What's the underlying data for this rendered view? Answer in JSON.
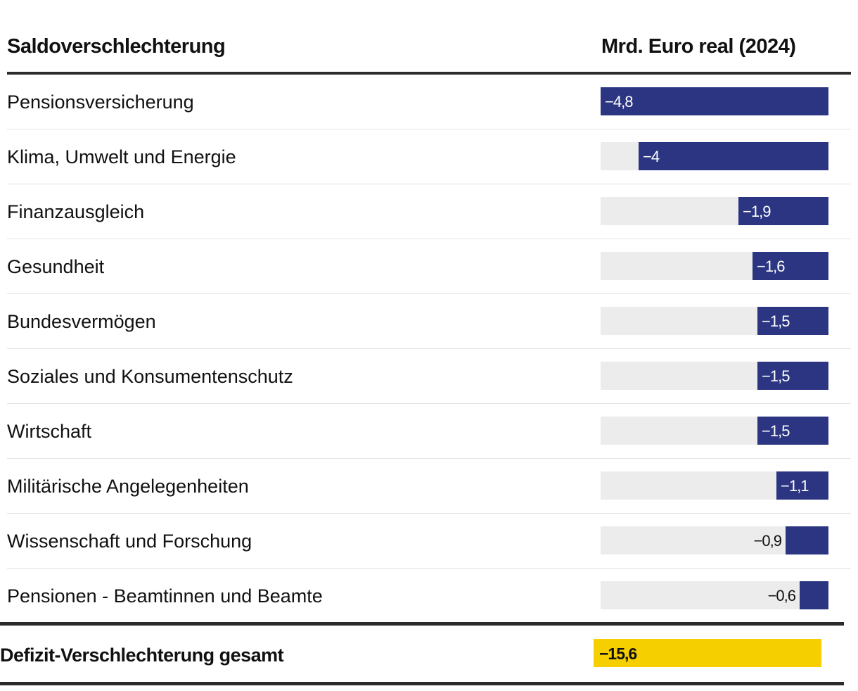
{
  "chart_data": {
    "type": "table",
    "title": "",
    "columns": [
      "Saldoverschlechterung",
      "Mrd. Euro real (2024)"
    ],
    "unit": "Mrd. Euro real (2024)",
    "bar_color": "#2b3582",
    "track_color": "#ececec",
    "total_color": "#f5cf00",
    "scale_max": 4.8,
    "rows": [
      {
        "label": "Pensionsversicherung",
        "value": -4.8,
        "display": "−4,8"
      },
      {
        "label": "Klima, Umwelt und Energie",
        "value": -4.0,
        "display": "−4"
      },
      {
        "label": "Finanzausgleich",
        "value": -1.9,
        "display": "−1,9"
      },
      {
        "label": "Gesundheit",
        "value": -1.6,
        "display": "−1,6"
      },
      {
        "label": "Bundesvermögen",
        "value": -1.5,
        "display": "−1,5"
      },
      {
        "label": "Soziales und Konsumentenschutz",
        "value": -1.5,
        "display": "−1,5"
      },
      {
        "label": "Wirtschaft",
        "value": -1.5,
        "display": "−1,5"
      },
      {
        "label": "Militärische Angelegenheiten",
        "value": -1.1,
        "display": "−1,1"
      },
      {
        "label": "Wissenschaft und Forschung",
        "value": -0.9,
        "display": "−0,9"
      },
      {
        "label": "Pensionen - Beamtinnen und Beamte",
        "value": -0.6,
        "display": "−0,6"
      }
    ],
    "total": {
      "label": "Defizit-Verschlechterung gesamt",
      "value": -15.6,
      "display": "−15,6"
    }
  }
}
